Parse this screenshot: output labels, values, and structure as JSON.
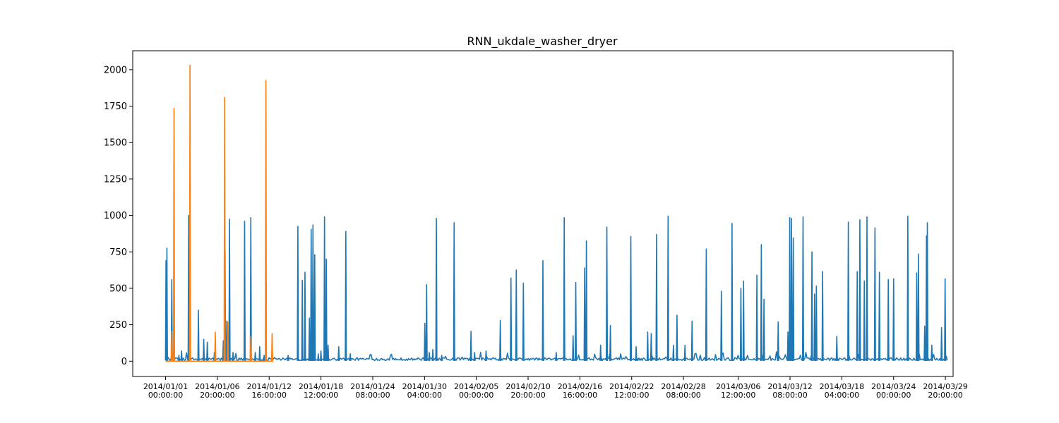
{
  "chart_data": {
    "type": "line",
    "title": "RNN_ukdale_washer_dryer",
    "xlabel": "",
    "ylabel": "",
    "ylim": [
      -105,
      2130
    ],
    "xlim_days": [
      -3.7,
      88.7
    ],
    "yticks": [
      0,
      250,
      500,
      750,
      1000,
      1250,
      1500,
      1750,
      2000
    ],
    "xticks": [
      {
        "label": [
          "2014/01/01",
          "00:00:00"
        ],
        "day": 0
      },
      {
        "label": [
          "2014/01/06",
          "20:00:00"
        ],
        "day": 5.833
      },
      {
        "label": [
          "2014/01/12",
          "16:00:00"
        ],
        "day": 11.667
      },
      {
        "label": [
          "2014/01/18",
          "12:00:00"
        ],
        "day": 17.5
      },
      {
        "label": [
          "2014/01/24",
          "08:00:00"
        ],
        "day": 23.333
      },
      {
        "label": [
          "2014/01/30",
          "04:00:00"
        ],
        "day": 29.167
      },
      {
        "label": [
          "2014/02/05",
          "00:00:00"
        ],
        "day": 35
      },
      {
        "label": [
          "2014/02/10",
          "20:00:00"
        ],
        "day": 40.833
      },
      {
        "label": [
          "2014/02/16",
          "16:00:00"
        ],
        "day": 46.667
      },
      {
        "label": [
          "2014/02/22",
          "12:00:00"
        ],
        "day": 52.5
      },
      {
        "label": [
          "2014/02/28",
          "08:00:00"
        ],
        "day": 58.333
      },
      {
        "label": [
          "2014/03/06",
          "12:00:00"
        ],
        "day": 64.5
      },
      {
        "label": [
          "2014/03/12",
          "08:00:00"
        ],
        "day": 70.333
      },
      {
        "label": [
          "2014/03/18",
          "04:00:00"
        ],
        "day": 76.167
      },
      {
        "label": [
          "2014/03/24",
          "00:00:00"
        ],
        "day": 82
      },
      {
        "label": [
          "2014/03/29",
          "20:00:00"
        ],
        "day": 87.833
      }
    ],
    "series": [
      {
        "color": "#1f77b4",
        "baseline": 5,
        "x_range_days": [
          0,
          88
        ],
        "spikes": [
          [
            0.05,
            690
          ],
          [
            0.15,
            775
          ],
          [
            0.7,
            560
          ],
          [
            1.5,
            40
          ],
          [
            1.8,
            70
          ],
          [
            2.6,
            1000
          ],
          [
            3.7,
            350
          ],
          [
            4.3,
            150
          ],
          [
            4.7,
            130
          ],
          [
            5.5,
            60
          ],
          [
            6.5,
            140
          ],
          [
            6.7,
            755
          ],
          [
            6.9,
            275
          ],
          [
            7.2,
            975
          ],
          [
            7.6,
            60
          ],
          [
            8.9,
            960
          ],
          [
            9.6,
            985
          ],
          [
            10.1,
            60
          ],
          [
            10.6,
            100
          ],
          [
            11.1,
            40
          ],
          [
            13.8,
            40
          ],
          [
            14.9,
            925
          ],
          [
            15.4,
            555
          ],
          [
            15.7,
            610
          ],
          [
            16.2,
            295
          ],
          [
            16.4,
            905
          ],
          [
            16.6,
            935
          ],
          [
            16.8,
            730
          ],
          [
            17.2,
            50
          ],
          [
            17.5,
            70
          ],
          [
            17.9,
            990
          ],
          [
            18.1,
            700
          ],
          [
            18.3,
            110
          ],
          [
            19.5,
            100
          ],
          [
            20.3,
            890
          ],
          [
            20.8,
            50
          ],
          [
            29.2,
            260
          ],
          [
            29.4,
            525
          ],
          [
            29.7,
            60
          ],
          [
            30.1,
            80
          ],
          [
            30.5,
            980
          ],
          [
            31.1,
            40
          ],
          [
            32.5,
            950
          ],
          [
            34.4,
            205
          ],
          [
            34.8,
            60
          ],
          [
            36.1,
            70
          ],
          [
            37.7,
            280
          ],
          [
            38.9,
            570
          ],
          [
            39.5,
            625
          ],
          [
            40.3,
            535
          ],
          [
            42.5,
            690
          ],
          [
            44.0,
            60
          ],
          [
            44.9,
            985
          ],
          [
            45.9,
            175
          ],
          [
            46.2,
            540
          ],
          [
            47.2,
            640
          ],
          [
            47.4,
            825
          ],
          [
            49.0,
            110
          ],
          [
            49.7,
            920
          ],
          [
            50.1,
            245
          ],
          [
            52.4,
            855
          ],
          [
            53.0,
            100
          ],
          [
            54.3,
            200
          ],
          [
            54.7,
            190
          ],
          [
            55.3,
            870
          ],
          [
            56.6,
            995
          ],
          [
            57.2,
            110
          ],
          [
            57.6,
            315
          ],
          [
            58.5,
            110
          ],
          [
            59.3,
            275
          ],
          [
            60.9,
            770
          ],
          [
            62.6,
            480
          ],
          [
            63.8,
            945
          ],
          [
            64.8,
            500
          ],
          [
            65.1,
            550
          ],
          [
            66.6,
            590
          ],
          [
            67.1,
            800
          ],
          [
            67.4,
            425
          ],
          [
            69.0,
            270
          ],
          [
            70.1,
            200
          ],
          [
            70.3,
            985
          ],
          [
            70.5,
            980
          ],
          [
            70.7,
            845
          ],
          [
            71.8,
            990
          ],
          [
            72.8,
            750
          ],
          [
            73.1,
            460
          ],
          [
            73.3,
            515
          ],
          [
            74.0,
            615
          ],
          [
            75.6,
            170
          ],
          [
            76.9,
            955
          ],
          [
            77.9,
            615
          ],
          [
            78.2,
            970
          ],
          [
            78.7,
            550
          ],
          [
            79.0,
            990
          ],
          [
            79.9,
            915
          ],
          [
            80.4,
            610
          ],
          [
            81.4,
            560
          ],
          [
            82.0,
            565
          ],
          [
            83.6,
            995
          ],
          [
            84.6,
            605
          ],
          [
            84.8,
            735
          ],
          [
            85.5,
            240
          ],
          [
            85.7,
            860
          ],
          [
            85.8,
            950
          ],
          [
            86.3,
            110
          ],
          [
            87.4,
            230
          ],
          [
            87.8,
            565
          ]
        ]
      },
      {
        "color": "#ff7f0e",
        "baseline": 0,
        "x_range_days": [
          0,
          12
        ],
        "spikes": [
          [
            0.7,
            205
          ],
          [
            0.95,
            1735
          ],
          [
            2.75,
            2030
          ],
          [
            5.6,
            200
          ],
          [
            6.65,
            1810
          ],
          [
            7.0,
            270
          ],
          [
            9.6,
            170
          ],
          [
            11.3,
            1925
          ],
          [
            12.0,
            190
          ]
        ]
      }
    ]
  }
}
